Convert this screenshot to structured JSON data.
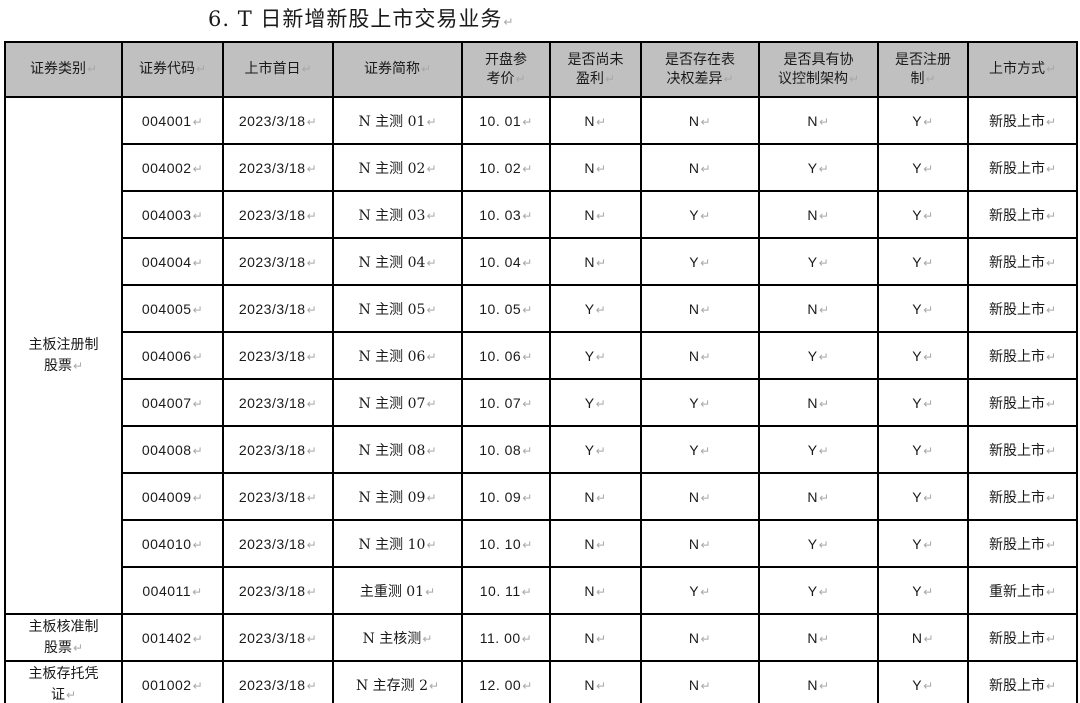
{
  "title": "6. T 日新增新股上市交易业务",
  "eol_mark": "↵",
  "colors": {
    "header_bg": "#c0c0c0",
    "border": "#000000",
    "eol_mark_gray": "#a8a8a8"
  },
  "table": {
    "headers": [
      "证券类别",
      "证券代码",
      "上市首日",
      "证券简称",
      "开盘参\n考价",
      "是否尚未\n盈利",
      "是否存在表\n决权差异",
      "是否具有协\n议控制架构",
      "是否注册\n制",
      "上市方式"
    ],
    "groups": [
      {
        "category": "主板注册制\n股票",
        "rows": [
          [
            "004001",
            "2023/3/18",
            "N 主测 01",
            "10. 01",
            "N",
            "N",
            "N",
            "Y",
            "新股上市"
          ],
          [
            "004002",
            "2023/3/18",
            "N 主测 02",
            "10. 02",
            "N",
            "N",
            "Y",
            "Y",
            "新股上市"
          ],
          [
            "004003",
            "2023/3/18",
            "N 主测 03",
            "10. 03",
            "N",
            "Y",
            "N",
            "Y",
            "新股上市"
          ],
          [
            "004004",
            "2023/3/18",
            "N 主测 04",
            "10. 04",
            "N",
            "Y",
            "Y",
            "Y",
            "新股上市"
          ],
          [
            "004005",
            "2023/3/18",
            "N 主测 05",
            "10. 05",
            "Y",
            "N",
            "N",
            "Y",
            "新股上市"
          ],
          [
            "004006",
            "2023/3/18",
            "N 主测 06",
            "10. 06",
            "Y",
            "N",
            "Y",
            "Y",
            "新股上市"
          ],
          [
            "004007",
            "2023/3/18",
            "N 主测 07",
            "10. 07",
            "Y",
            "Y",
            "N",
            "Y",
            "新股上市"
          ],
          [
            "004008",
            "2023/3/18",
            "N 主测 08",
            "10. 08",
            "Y",
            "Y",
            "Y",
            "Y",
            "新股上市"
          ],
          [
            "004009",
            "2023/3/18",
            "N 主测 09",
            "10. 09",
            "N",
            "N",
            "N",
            "Y",
            "新股上市"
          ],
          [
            "004010",
            "2023/3/18",
            "N 主测 10",
            "10. 10",
            "N",
            "N",
            "Y",
            "Y",
            "新股上市"
          ],
          [
            "004011",
            "2023/3/18",
            "主重测 01",
            "10. 11",
            "N",
            "Y",
            "Y",
            "Y",
            "重新上市"
          ]
        ]
      },
      {
        "category": "主板核准制\n股票",
        "rows": [
          [
            "001402",
            "2023/3/18",
            "N 主核测",
            "11. 00",
            "N",
            "N",
            "N",
            "N",
            "新股上市"
          ]
        ]
      },
      {
        "category": "主板存托凭\n证",
        "rows": [
          [
            "001002",
            "2023/3/18",
            "N 主存测 2",
            "12. 00",
            "N",
            "N",
            "N",
            "Y",
            "新股上市"
          ]
        ]
      }
    ]
  }
}
